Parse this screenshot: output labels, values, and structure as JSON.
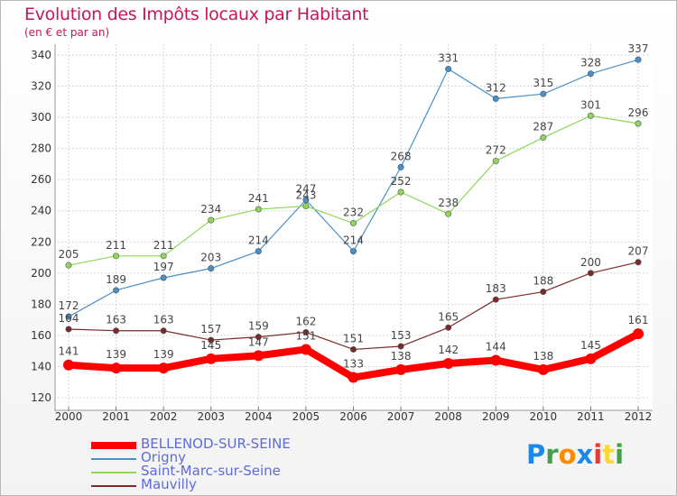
{
  "header": {
    "title": "Evolution des Impôts locaux par Habitant",
    "subtitle": "(en € et par an)"
  },
  "logo": {
    "letters": [
      "P",
      "r",
      "o",
      "x",
      "i",
      "t",
      "i"
    ],
    "colors": [
      "#1e88e5",
      "#43a047",
      "#fb8c00",
      "#1e88e5",
      "#e53935",
      "#fdd835",
      "#43a047"
    ]
  },
  "chart_data": {
    "type": "line",
    "title": "Evolution des Impôts locaux par Habitant",
    "subtitle": "(en € et par an)",
    "xlabel": "",
    "ylabel": "",
    "x": [
      "2000",
      "2001",
      "2002",
      "2003",
      "2004",
      "2005",
      "2006",
      "2007",
      "2008",
      "2009",
      "2010",
      "2011",
      "2012"
    ],
    "ylim": [
      120,
      340
    ],
    "yticks": [
      120,
      140,
      160,
      180,
      200,
      220,
      240,
      260,
      280,
      300,
      320,
      340
    ],
    "grid": true,
    "legend_position": "bottom-left",
    "series": [
      {
        "name": "BELLENOD-SUR-SEINE",
        "color": "#ff0000",
        "values": [
          141,
          139,
          139,
          145,
          147,
          151,
          133,
          138,
          142,
          144,
          138,
          145,
          161
        ]
      },
      {
        "name": "Origny",
        "color": "#4a90c8",
        "values": [
          172,
          189,
          197,
          203,
          214,
          247,
          214,
          268,
          331,
          312,
          315,
          328,
          337
        ]
      },
      {
        "name": "Saint-Marc-sur-Seine",
        "color": "#8fd65a",
        "values": [
          205,
          211,
          211,
          234,
          241,
          243,
          232,
          252,
          238,
          272,
          287,
          301,
          296
        ]
      },
      {
        "name": "Mauvilly",
        "color": "#7a2a2a",
        "values": [
          164,
          163,
          163,
          157,
          159,
          162,
          151,
          153,
          165,
          183,
          188,
          200,
          207
        ]
      }
    ]
  }
}
